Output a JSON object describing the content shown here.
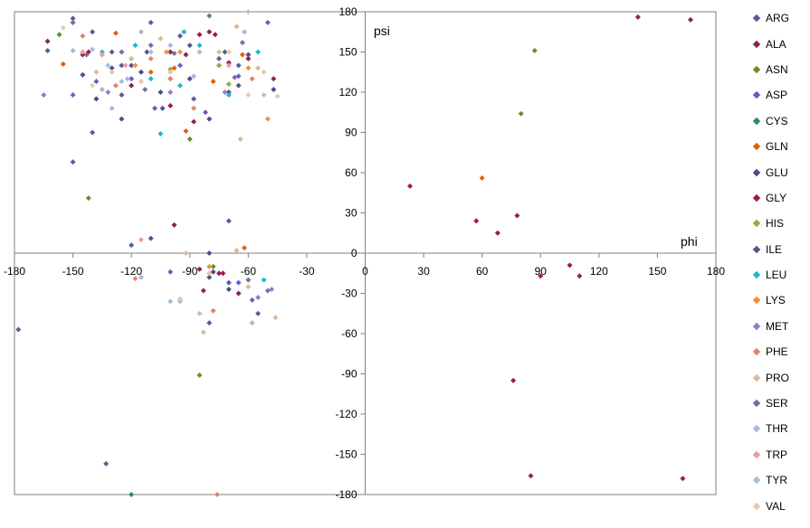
{
  "chart_data": {
    "type": "scatter",
    "xlabel": "phi",
    "ylabel": "psi",
    "xlim": [
      -180,
      180
    ],
    "ylim": [
      -180,
      180
    ],
    "xticks": [
      -180,
      -150,
      -120,
      -90,
      -60,
      -30,
      0,
      30,
      60,
      90,
      120,
      150,
      180
    ],
    "yticks": [
      -180,
      -150,
      -120,
      -90,
      -60,
      -30,
      0,
      30,
      60,
      90,
      120,
      150,
      180
    ],
    "grid": false,
    "legend_position": "right",
    "series": [
      {
        "name": "ARG",
        "color": "#5b5b9b",
        "points": [
          [
            -163,
            151
          ],
          [
            -150,
            175
          ],
          [
            -140,
            165
          ],
          [
            -130,
            150
          ],
          [
            -125,
            118
          ],
          [
            -110,
            172
          ],
          [
            -100,
            130
          ],
          [
            -88,
            115
          ],
          [
            -75,
            145
          ],
          [
            -65,
            140
          ],
          [
            -140,
            90
          ],
          [
            -150,
            68
          ],
          [
            -120,
            6
          ],
          [
            -70,
            24
          ],
          [
            -70,
            -22
          ],
          [
            -55,
            -45
          ],
          [
            -80,
            -52
          ],
          [
            -133,
            -157
          ],
          [
            -178,
            -57
          ],
          [
            -125,
            140
          ],
          [
            -95,
            162
          ]
        ]
      },
      {
        "name": "ALA",
        "color": "#8b2252",
        "points": [
          [
            -163,
            158
          ],
          [
            -145,
            148
          ],
          [
            -120,
            125
          ],
          [
            -100,
            150
          ],
          [
            -92,
            148
          ],
          [
            -88,
            98
          ],
          [
            -80,
            165
          ],
          [
            -70,
            142
          ],
          [
            -60,
            145
          ],
          [
            -47,
            130
          ],
          [
            -65,
            -30
          ],
          [
            -75,
            -15
          ],
          [
            -85,
            -12
          ],
          [
            -98,
            21
          ],
          [
            140,
            176
          ],
          [
            167,
            174
          ]
        ]
      },
      {
        "name": "ASN",
        "color": "#6b8e23",
        "points": [
          [
            -157,
            163
          ],
          [
            -142,
            41
          ],
          [
            -90,
            85
          ],
          [
            -85,
            -91
          ],
          [
            -78,
            -10
          ],
          [
            -75,
            140
          ],
          [
            80,
            104
          ],
          [
            87,
            151
          ]
        ]
      },
      {
        "name": "ASP",
        "color": "#6a5acd",
        "points": [
          [
            -150,
            118
          ],
          [
            -138,
            128
          ],
          [
            -120,
            130
          ],
          [
            -108,
            108
          ],
          [
            -95,
            140
          ],
          [
            -82,
            105
          ],
          [
            -65,
            132
          ],
          [
            -50,
            172
          ],
          [
            -58,
            -35
          ],
          [
            -65,
            -22
          ],
          [
            -100,
            -14
          ]
        ]
      },
      {
        "name": "CYS",
        "color": "#2e8b57",
        "points": [
          [
            -120,
            -180
          ]
        ]
      },
      {
        "name": "GLN",
        "color": "#e06010",
        "points": [
          [
            -155,
            141
          ],
          [
            -128,
            164
          ],
          [
            -110,
            135
          ],
          [
            -98,
            138
          ],
          [
            -92,
            91
          ],
          [
            -78,
            128
          ],
          [
            -62,
            4
          ],
          [
            -80,
            -15
          ],
          [
            -63,
            148
          ],
          [
            60,
            56
          ]
        ]
      },
      {
        "name": "GLU",
        "color": "#4b4b8b",
        "points": [
          [
            -145,
            133
          ],
          [
            -138,
            115
          ],
          [
            -125,
            100
          ],
          [
            -115,
            135
          ],
          [
            -105,
            120
          ],
          [
            -90,
            130
          ],
          [
            -80,
            100
          ],
          [
            -70,
            120
          ],
          [
            -60,
            148
          ],
          [
            -47,
            122
          ],
          [
            -78,
            -14
          ],
          [
            -70,
            -27
          ],
          [
            -80,
            0
          ]
        ]
      },
      {
        "name": "GLY",
        "color": "#a01a4a",
        "points": [
          [
            -142,
            150
          ],
          [
            -100,
            110
          ],
          [
            -85,
            163
          ],
          [
            -77,
            163
          ],
          [
            -83,
            -28
          ],
          [
            -73,
            -15
          ],
          [
            23,
            50
          ],
          [
            57,
            24
          ],
          [
            68,
            15
          ],
          [
            78,
            28
          ],
          [
            90,
            -17
          ],
          [
            105,
            -9
          ],
          [
            110,
            -17
          ],
          [
            76,
            -95
          ],
          [
            85,
            -166
          ],
          [
            163,
            -168
          ]
        ]
      },
      {
        "name": "HIS",
        "color": "#8fb03a",
        "points": [
          [
            -120,
            145
          ],
          [
            -100,
            137
          ],
          [
            -75,
            140
          ],
          [
            -70,
            126
          ]
        ]
      },
      {
        "name": "ILE",
        "color": "#53538b",
        "points": [
          [
            -145,
            133
          ],
          [
            -130,
            138
          ],
          [
            -120,
            140
          ],
          [
            -112,
            150
          ],
          [
            -104,
            108
          ],
          [
            -90,
            155
          ],
          [
            -72,
            150
          ],
          [
            -65,
            125
          ],
          [
            -110,
            11
          ],
          [
            -80,
            -18
          ]
        ]
      },
      {
        "name": "LEU",
        "color": "#20b8c8",
        "points": [
          [
            -135,
            150
          ],
          [
            -118,
            155
          ],
          [
            -110,
            130
          ],
          [
            -105,
            89
          ],
          [
            -95,
            125
          ],
          [
            -93,
            165
          ],
          [
            -85,
            155
          ],
          [
            -70,
            118
          ],
          [
            -55,
            150
          ],
          [
            -52,
            -20
          ]
        ]
      },
      {
        "name": "LYS",
        "color": "#f0903a",
        "points": [
          [
            -150,
            172
          ],
          [
            -135,
            148
          ],
          [
            -118,
            140
          ],
          [
            -102,
            150
          ],
          [
            -95,
            150
          ],
          [
            -80,
            -10
          ],
          [
            -60,
            138
          ],
          [
            -50,
            100
          ]
        ]
      },
      {
        "name": "MET",
        "color": "#9b79c9",
        "points": [
          [
            -165,
            118
          ],
          [
            -132,
            120
          ],
          [
            -100,
            120
          ],
          [
            -72,
            120
          ],
          [
            -55,
            -33
          ],
          [
            -48,
            -27
          ]
        ]
      },
      {
        "name": "PHE",
        "color": "#e8806e",
        "points": [
          [
            -145,
            162
          ],
          [
            -128,
            125
          ],
          [
            -118,
            -19
          ],
          [
            -110,
            145
          ],
          [
            -100,
            130
          ],
          [
            -88,
            108
          ],
          [
            -78,
            -43
          ],
          [
            -76,
            -180
          ],
          [
            -58,
            130
          ]
        ]
      },
      {
        "name": "PRO",
        "color": "#dcb89a",
        "points": [
          [
            -150,
            172
          ],
          [
            -138,
            135
          ],
          [
            -120,
            145
          ],
          [
            -105,
            160
          ],
          [
            -95,
            -35
          ],
          [
            -92,
            0
          ],
          [
            -85,
            -45
          ],
          [
            -83,
            -59
          ],
          [
            -75,
            150
          ],
          [
            -66,
            169
          ],
          [
            -64,
            85
          ],
          [
            -60,
            180
          ],
          [
            -55,
            138
          ],
          [
            -52,
            118
          ],
          [
            -46,
            -48
          ],
          [
            -66,
            2
          ],
          [
            -60,
            -25
          ]
        ]
      },
      {
        "name": "SER",
        "color": "#7570a3",
        "points": [
          [
            -150,
            172
          ],
          [
            -143,
            148
          ],
          [
            -125,
            150
          ],
          [
            -113,
            122
          ],
          [
            -110,
            155
          ],
          [
            -98,
            149
          ],
          [
            -80,
            177
          ],
          [
            -67,
            131
          ],
          [
            -63,
            157
          ],
          [
            -60,
            -20
          ],
          [
            -50,
            -28
          ]
        ]
      },
      {
        "name": "THR",
        "color": "#a8b8d8",
        "points": [
          [
            -150,
            151
          ],
          [
            -135,
            122
          ],
          [
            -130,
            108
          ],
          [
            -122,
            130
          ],
          [
            -115,
            165
          ],
          [
            -100,
            155
          ],
          [
            -88,
            132
          ],
          [
            -62,
            165
          ],
          [
            -115,
            -18
          ],
          [
            -95,
            -36
          ],
          [
            -58,
            -52
          ]
        ]
      },
      {
        "name": "TRP",
        "color": "#f09aa0",
        "points": [
          [
            -145,
            150
          ],
          [
            -135,
            148
          ],
          [
            -123,
            140
          ],
          [
            -115,
            10
          ],
          [
            -70,
            140
          ]
        ]
      },
      {
        "name": "TYR",
        "color": "#9fc0e0",
        "points": [
          [
            -140,
            152
          ],
          [
            -132,
            140
          ],
          [
            -125,
            128
          ],
          [
            -110,
            150
          ],
          [
            -100,
            -36
          ],
          [
            -85,
            150
          ]
        ]
      },
      {
        "name": "VAL",
        "color": "#e8c8a8",
        "points": [
          [
            -155,
            168
          ],
          [
            -140,
            125
          ],
          [
            -130,
            135
          ],
          [
            -115,
            128
          ],
          [
            -100,
            135
          ],
          [
            -95,
            -34
          ],
          [
            -80,
            -15
          ],
          [
            -70,
            150
          ],
          [
            -60,
            118
          ],
          [
            -52,
            135
          ],
          [
            -45,
            117
          ]
        ]
      }
    ]
  }
}
